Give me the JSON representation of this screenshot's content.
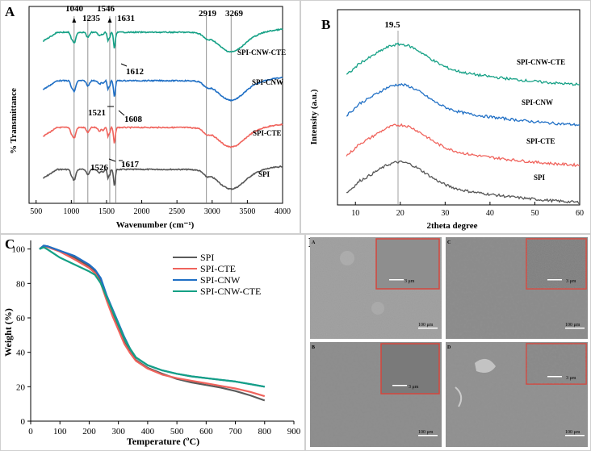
{
  "panels": {
    "A": "A",
    "B": "B",
    "C": "C",
    "D": "D"
  },
  "chart_data": [
    {
      "panel": "A",
      "type": "line",
      "title": "",
      "xlabel": "Wavenumber (cm⁻¹)",
      "ylabel": "% Transmittance",
      "xlim": [
        400,
        4000
      ],
      "x_ticks": [
        500,
        1000,
        1500,
        2000,
        2500,
        3000,
        3500,
        4000
      ],
      "reference_lines": [
        1040,
        1235,
        1546,
        1631,
        2919,
        3269
      ],
      "peak_labels": [
        "1040",
        "1235",
        "1546",
        "1631",
        "2919",
        "3269"
      ],
      "annotations": [
        "1612",
        "1521",
        "1608",
        "1526",
        "1617"
      ],
      "series": [
        {
          "name": "SPI",
          "color": "#555555"
        },
        {
          "name": "SPI-CTE",
          "color": "#f0635c"
        },
        {
          "name": "SPI-CNW",
          "color": "#1f6fc5"
        },
        {
          "name": "SPI-CNW-CTE",
          "color": "#14a085"
        }
      ]
    },
    {
      "panel": "B",
      "type": "line",
      "xlabel": "2theta degree",
      "ylabel": "Intensity (a.u.)",
      "xlim": [
        6,
        60
      ],
      "x_ticks": [
        10,
        20,
        30,
        40,
        50,
        60
      ],
      "reference_line": 19.5,
      "peak_label": "19.5",
      "series": [
        {
          "name": "SPI",
          "color": "#555555"
        },
        {
          "name": "SPI-CTE",
          "color": "#f0635c"
        },
        {
          "name": "SPI-CNW",
          "color": "#1f6fc5"
        },
        {
          "name": "SPI-CNW-CTE",
          "color": "#14a085"
        }
      ]
    },
    {
      "panel": "C",
      "type": "line",
      "xlabel": "Temperature (ºC)",
      "ylabel": "Weight (%)",
      "xlim": [
        0,
        900
      ],
      "ylim": [
        0,
        105
      ],
      "x_ticks": [
        0,
        100,
        200,
        300,
        400,
        500,
        600,
        700,
        800,
        900
      ],
      "y_ticks": [
        0,
        20,
        40,
        60,
        80,
        100
      ],
      "legend_position": "top-right",
      "series": [
        {
          "name": "SPI",
          "color": "#5a5a5a",
          "points": [
            [
              30,
              100
            ],
            [
              45,
              102
            ],
            [
              60,
              101.5
            ],
            [
              100,
              99
            ],
            [
              150,
              95
            ],
            [
              200,
              90
            ],
            [
              220,
              87
            ],
            [
              240,
              81
            ],
            [
              260,
              71
            ],
            [
              280,
              62
            ],
            [
              300,
              54
            ],
            [
              320,
              46
            ],
            [
              340,
              40
            ],
            [
              360,
              35.5
            ],
            [
              400,
              31
            ],
            [
              450,
              27.5
            ],
            [
              500,
              24.5
            ],
            [
              550,
              22.5
            ],
            [
              600,
              21
            ],
            [
              650,
              19.5
            ],
            [
              700,
              17.5
            ],
            [
              750,
              15
            ],
            [
              800,
              12
            ]
          ]
        },
        {
          "name": "SPI-CTE",
          "color": "#f0635c",
          "points": [
            [
              30,
              100
            ],
            [
              45,
              101.5
            ],
            [
              60,
              101
            ],
            [
              100,
              98.5
            ],
            [
              150,
              94
            ],
            [
              200,
              89
            ],
            [
              220,
              86
            ],
            [
              240,
              80
            ],
            [
              260,
              70
            ],
            [
              280,
              61
            ],
            [
              300,
              53
            ],
            [
              320,
              45
            ],
            [
              340,
              39.5
            ],
            [
              360,
              35
            ],
            [
              400,
              30.5
            ],
            [
              450,
              27
            ],
            [
              500,
              25
            ],
            [
              550,
              23.5
            ],
            [
              600,
              22
            ],
            [
              650,
              20.5
            ],
            [
              700,
              19
            ],
            [
              750,
              17
            ],
            [
              800,
              14.5
            ]
          ]
        },
        {
          "name": "SPI-CNW",
          "color": "#1f6fc5",
          "points": [
            [
              30,
              100
            ],
            [
              45,
              102
            ],
            [
              60,
              101.5
            ],
            [
              100,
              99
            ],
            [
              150,
              96
            ],
            [
              200,
              91
            ],
            [
              220,
              88
            ],
            [
              240,
              83
            ],
            [
              260,
              73
            ],
            [
              280,
              65
            ],
            [
              300,
              57
            ],
            [
              320,
              49
            ],
            [
              340,
              42
            ],
            [
              360,
              37
            ],
            [
              400,
              32.5
            ],
            [
              450,
              29.5
            ],
            [
              500,
              27.5
            ],
            [
              550,
              26
            ],
            [
              600,
              25
            ],
            [
              650,
              24
            ],
            [
              700,
              23
            ],
            [
              750,
              21.5
            ],
            [
              800,
              20
            ]
          ]
        },
        {
          "name": "SPI-CNW-CTE",
          "color": "#14a085",
          "points": [
            [
              30,
              100
            ],
            [
              45,
              101
            ],
            [
              60,
              99.5
            ],
            [
              100,
              95
            ],
            [
              150,
              91
            ],
            [
              200,
              87
            ],
            [
              220,
              85
            ],
            [
              240,
              80
            ],
            [
              260,
              72
            ],
            [
              280,
              64
            ],
            [
              300,
              56
            ],
            [
              320,
              48
            ],
            [
              340,
              42
            ],
            [
              360,
              37
            ],
            [
              400,
              32.5
            ],
            [
              450,
              29.5
            ],
            [
              500,
              27.5
            ],
            [
              550,
              26
            ],
            [
              600,
              25
            ],
            [
              650,
              24
            ],
            [
              700,
              23
            ],
            [
              750,
              21.5
            ],
            [
              800,
              20
            ]
          ]
        }
      ]
    }
  ],
  "sem": {
    "tiles": [
      {
        "label": "A",
        "scale_main": "100 μm",
        "scale_inset": "3 μm"
      },
      {
        "label": "C",
        "scale_main": "100 μm",
        "scale_inset": "3 μm"
      },
      {
        "label": "B",
        "scale_main": "100 μm",
        "scale_inset": "3 μm"
      },
      {
        "label": "D",
        "scale_main": "100 μm",
        "scale_inset": "3 μm"
      }
    ]
  }
}
